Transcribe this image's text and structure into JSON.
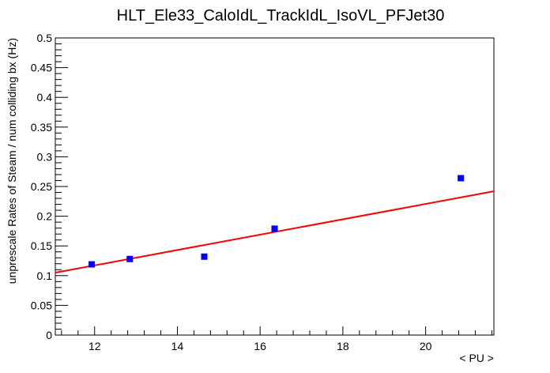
{
  "chart_data": {
    "type": "scatter",
    "title": "HLT_Ele33_CaloIdL_TrackIdL_IsoVL_PFJet30",
    "xlabel": "< PU >",
    "ylabel": "unprescale Rates of Steam / num colliding bx (Hz)",
    "xlim": [
      11.05,
      21.65
    ],
    "ylim": [
      0,
      0.5
    ],
    "x_ticks": [
      12,
      14,
      16,
      18,
      20
    ],
    "y_ticks": [
      0,
      0.05,
      0.1,
      0.15,
      0.2,
      0.25,
      0.3,
      0.35,
      0.4,
      0.45,
      0.5
    ],
    "x_tick_labels": [
      "12",
      "14",
      "16",
      "18",
      "20"
    ],
    "y_tick_labels": [
      "0",
      "0.05",
      "0.1",
      "0.15",
      "0.2",
      "0.25",
      "0.3",
      "0.35",
      "0.4",
      "0.45",
      "0.5"
    ],
    "series": [
      {
        "kind": "points",
        "color": "#0000ff",
        "marker": "square",
        "x": [
          11.93,
          12.85,
          14.65,
          16.35,
          20.85
        ],
        "y": [
          0.119,
          0.128,
          0.132,
          0.179,
          0.264
        ]
      },
      {
        "kind": "fit-line",
        "color": "#ff0000",
        "x": [
          11.05,
          21.65
        ],
        "y": [
          0.105,
          0.242
        ]
      }
    ],
    "grid": false,
    "legend": "none"
  }
}
